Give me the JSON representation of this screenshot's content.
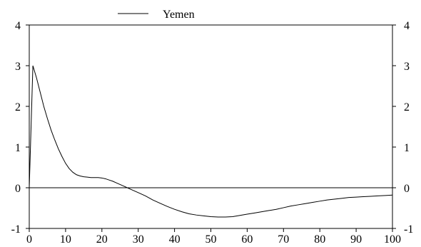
{
  "chart_data": {
    "type": "line",
    "title": "",
    "xlabel": "",
    "ylabel": "",
    "xlim": [
      0,
      100
    ],
    "ylim": [
      -1,
      4
    ],
    "x_ticks": [
      0,
      10,
      20,
      30,
      40,
      50,
      60,
      70,
      80,
      90,
      100
    ],
    "y_ticks": [
      -1,
      0,
      1,
      2,
      3,
      4
    ],
    "y_ticks_mirrored_right": true,
    "zero_line": true,
    "grid": false,
    "legend_position": "top-left",
    "series": [
      {
        "name": "Yemen",
        "color": "#000000",
        "x": [
          0,
          1,
          2,
          3,
          4,
          5,
          6,
          7,
          8,
          9,
          10,
          11,
          12,
          13,
          14,
          15,
          16,
          17,
          18,
          19,
          20,
          21,
          22,
          23,
          24,
          25,
          26,
          27,
          28,
          29,
          30,
          32,
          34,
          36,
          38,
          40,
          42,
          44,
          46,
          48,
          50,
          52,
          54,
          56,
          58,
          60,
          62,
          64,
          66,
          68,
          70,
          72,
          74,
          76,
          78,
          80,
          82,
          84,
          86,
          88,
          90,
          92,
          94,
          96,
          98,
          100
        ],
        "values": [
          0,
          3.0,
          2.7,
          2.35,
          2.0,
          1.7,
          1.42,
          1.18,
          0.96,
          0.77,
          0.6,
          0.47,
          0.38,
          0.32,
          0.29,
          0.27,
          0.26,
          0.25,
          0.25,
          0.25,
          0.24,
          0.22,
          0.19,
          0.16,
          0.12,
          0.08,
          0.04,
          0.0,
          -0.04,
          -0.08,
          -0.12,
          -0.2,
          -0.3,
          -0.38,
          -0.46,
          -0.53,
          -0.59,
          -0.64,
          -0.67,
          -0.69,
          -0.71,
          -0.72,
          -0.72,
          -0.71,
          -0.68,
          -0.65,
          -0.62,
          -0.59,
          -0.56,
          -0.53,
          -0.49,
          -0.45,
          -0.42,
          -0.39,
          -0.36,
          -0.33,
          -0.3,
          -0.28,
          -0.26,
          -0.24,
          -0.23,
          -0.22,
          -0.21,
          -0.2,
          -0.19,
          -0.18
        ]
      }
    ]
  }
}
